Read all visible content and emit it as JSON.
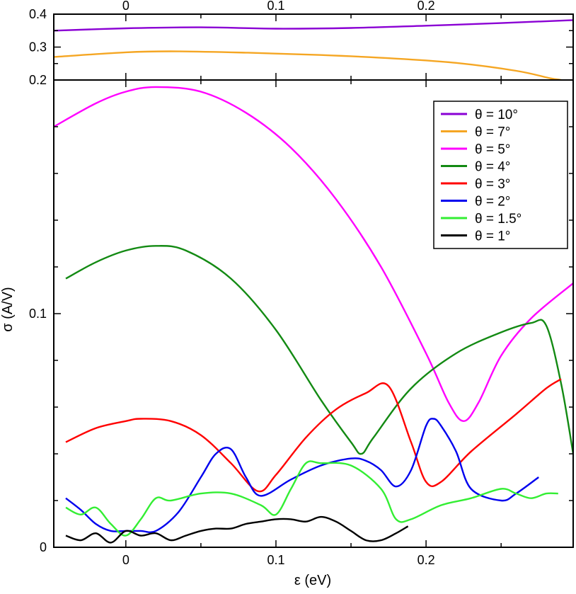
{
  "chart_data": {
    "type": "line",
    "xlabel": "ε  (eV)",
    "ylabel": "σ  (A/V)",
    "xlim": [
      -0.048,
      0.298
    ],
    "top_panel": {
      "ylim": [
        0.2,
        0.4
      ],
      "yticks": [
        "0.2",
        "0.3",
        "0.4"
      ],
      "xticks": [
        "0",
        "0.1",
        "0.2"
      ],
      "series": [
        {
          "name": "θ = 10°",
          "color": "#8a00d4",
          "x": [
            -0.048,
            0.0,
            0.05,
            0.1,
            0.15,
            0.2,
            0.25,
            0.298
          ],
          "y": [
            0.35,
            0.357,
            0.36,
            0.356,
            0.358,
            0.365,
            0.373,
            0.382
          ]
        },
        {
          "name": "θ =   7°",
          "color": "#f5a623",
          "x": [
            -0.048,
            0.0,
            0.03,
            0.08,
            0.13,
            0.18,
            0.22,
            0.26,
            0.283,
            0.29,
            0.298
          ],
          "y": [
            0.27,
            0.284,
            0.287,
            0.283,
            0.276,
            0.265,
            0.252,
            0.228,
            0.205,
            0.2,
            0.19
          ]
        }
      ]
    },
    "main_panel": {
      "ylim": [
        0,
        0.2
      ],
      "yticks": [
        "0",
        "0.1"
      ],
      "xticks": [
        "0",
        "0.1",
        "0.2"
      ],
      "series": [
        {
          "name": "θ =   5°",
          "color": "#ff00ff",
          "x": [
            -0.048,
            -0.02,
            0.0,
            0.02,
            0.05,
            0.08,
            0.11,
            0.14,
            0.17,
            0.2,
            0.215,
            0.225,
            0.235,
            0.25,
            0.27,
            0.298
          ],
          "y": [
            0.18,
            0.19,
            0.195,
            0.197,
            0.195,
            0.186,
            0.171,
            0.149,
            0.12,
            0.083,
            0.062,
            0.054,
            0.062,
            0.082,
            0.098,
            0.113
          ]
        },
        {
          "name": "θ =   4°",
          "color": "#138a13",
          "x": [
            -0.04,
            -0.02,
            0.0,
            0.02,
            0.04,
            0.07,
            0.1,
            0.13,
            0.15,
            0.157,
            0.165,
            0.19,
            0.22,
            0.25,
            0.27,
            0.28,
            0.29,
            0.298
          ],
          "y": [
            0.115,
            0.122,
            0.127,
            0.129,
            0.127,
            0.115,
            0.093,
            0.063,
            0.045,
            0.04,
            0.047,
            0.068,
            0.083,
            0.092,
            0.096,
            0.095,
            0.07,
            0.04
          ]
        },
        {
          "name": "θ =   3°",
          "color": "#ff0000",
          "x": [
            -0.04,
            -0.02,
            0.0,
            0.01,
            0.03,
            0.05,
            0.07,
            0.088,
            0.1,
            0.12,
            0.14,
            0.16,
            0.175,
            0.19,
            0.2,
            0.21,
            0.23,
            0.26,
            0.28,
            0.29
          ],
          "y": [
            0.045,
            0.051,
            0.054,
            0.055,
            0.054,
            0.048,
            0.036,
            0.024,
            0.031,
            0.047,
            0.059,
            0.066,
            0.069,
            0.045,
            0.028,
            0.028,
            0.041,
            0.057,
            0.068,
            0.072
          ]
        },
        {
          "name": "θ =   2°",
          "color": "#0000ee",
          "x": [
            -0.04,
            -0.03,
            -0.02,
            -0.01,
            0.0,
            0.01,
            0.02,
            0.035,
            0.05,
            0.06,
            0.07,
            0.08,
            0.09,
            0.11,
            0.13,
            0.15,
            0.16,
            0.17,
            0.18,
            0.19,
            0.2,
            0.205,
            0.21,
            0.22,
            0.23,
            0.25,
            0.26,
            0.275
          ],
          "y": [
            0.021,
            0.016,
            0.01,
            0.007,
            0.007,
            0.007,
            0.007,
            0.015,
            0.03,
            0.04,
            0.042,
            0.03,
            0.022,
            0.029,
            0.035,
            0.038,
            0.037,
            0.033,
            0.026,
            0.033,
            0.052,
            0.055,
            0.052,
            0.041,
            0.025,
            0.02,
            0.023,
            0.03
          ]
        },
        {
          "name": "θ =   1.5°",
          "color": "#33ee33",
          "x": [
            -0.04,
            -0.03,
            -0.02,
            -0.01,
            0.0,
            0.01,
            0.02,
            0.03,
            0.05,
            0.07,
            0.09,
            0.1,
            0.11,
            0.12,
            0.13,
            0.15,
            0.17,
            0.18,
            0.19,
            0.21,
            0.23,
            0.25,
            0.26,
            0.27,
            0.28,
            0.288
          ],
          "y": [
            0.017,
            0.014,
            0.017,
            0.01,
            0.005,
            0.012,
            0.021,
            0.02,
            0.023,
            0.023,
            0.018,
            0.014,
            0.025,
            0.036,
            0.036,
            0.035,
            0.025,
            0.012,
            0.012,
            0.018,
            0.021,
            0.025,
            0.023,
            0.021,
            0.023,
            0.023
          ]
        },
        {
          "name": "θ =   1°",
          "color": "#000000",
          "x": [
            -0.04,
            -0.03,
            -0.02,
            -0.01,
            0.0,
            0.01,
            0.02,
            0.03,
            0.04,
            0.05,
            0.06,
            0.07,
            0.08,
            0.09,
            0.1,
            0.11,
            0.12,
            0.13,
            0.14,
            0.15,
            0.16,
            0.17,
            0.18,
            0.188
          ],
          "y": [
            0.005,
            0.003,
            0.006,
            0.002,
            0.007,
            0.005,
            0.006,
            0.003,
            0.005,
            0.007,
            0.008,
            0.008,
            0.01,
            0.011,
            0.012,
            0.012,
            0.011,
            0.013,
            0.011,
            0.007,
            0.003,
            0.003,
            0.006,
            0.009
          ]
        }
      ]
    },
    "legend": {
      "placement": "top-right",
      "entries": [
        {
          "label": "θ = 10°",
          "color": "#8a00d4"
        },
        {
          "label": "θ =   7°",
          "color": "#f5a623"
        },
        {
          "label": "θ =   5°",
          "color": "#ff00ff"
        },
        {
          "label": "θ =   4°",
          "color": "#138a13"
        },
        {
          "label": "θ =   3°",
          "color": "#ff0000"
        },
        {
          "label": "θ =   2°",
          "color": "#0000ee"
        },
        {
          "label": "θ =   1.5°",
          "color": "#33ee33"
        },
        {
          "label": "θ =   1°",
          "color": "#000000"
        }
      ]
    }
  }
}
